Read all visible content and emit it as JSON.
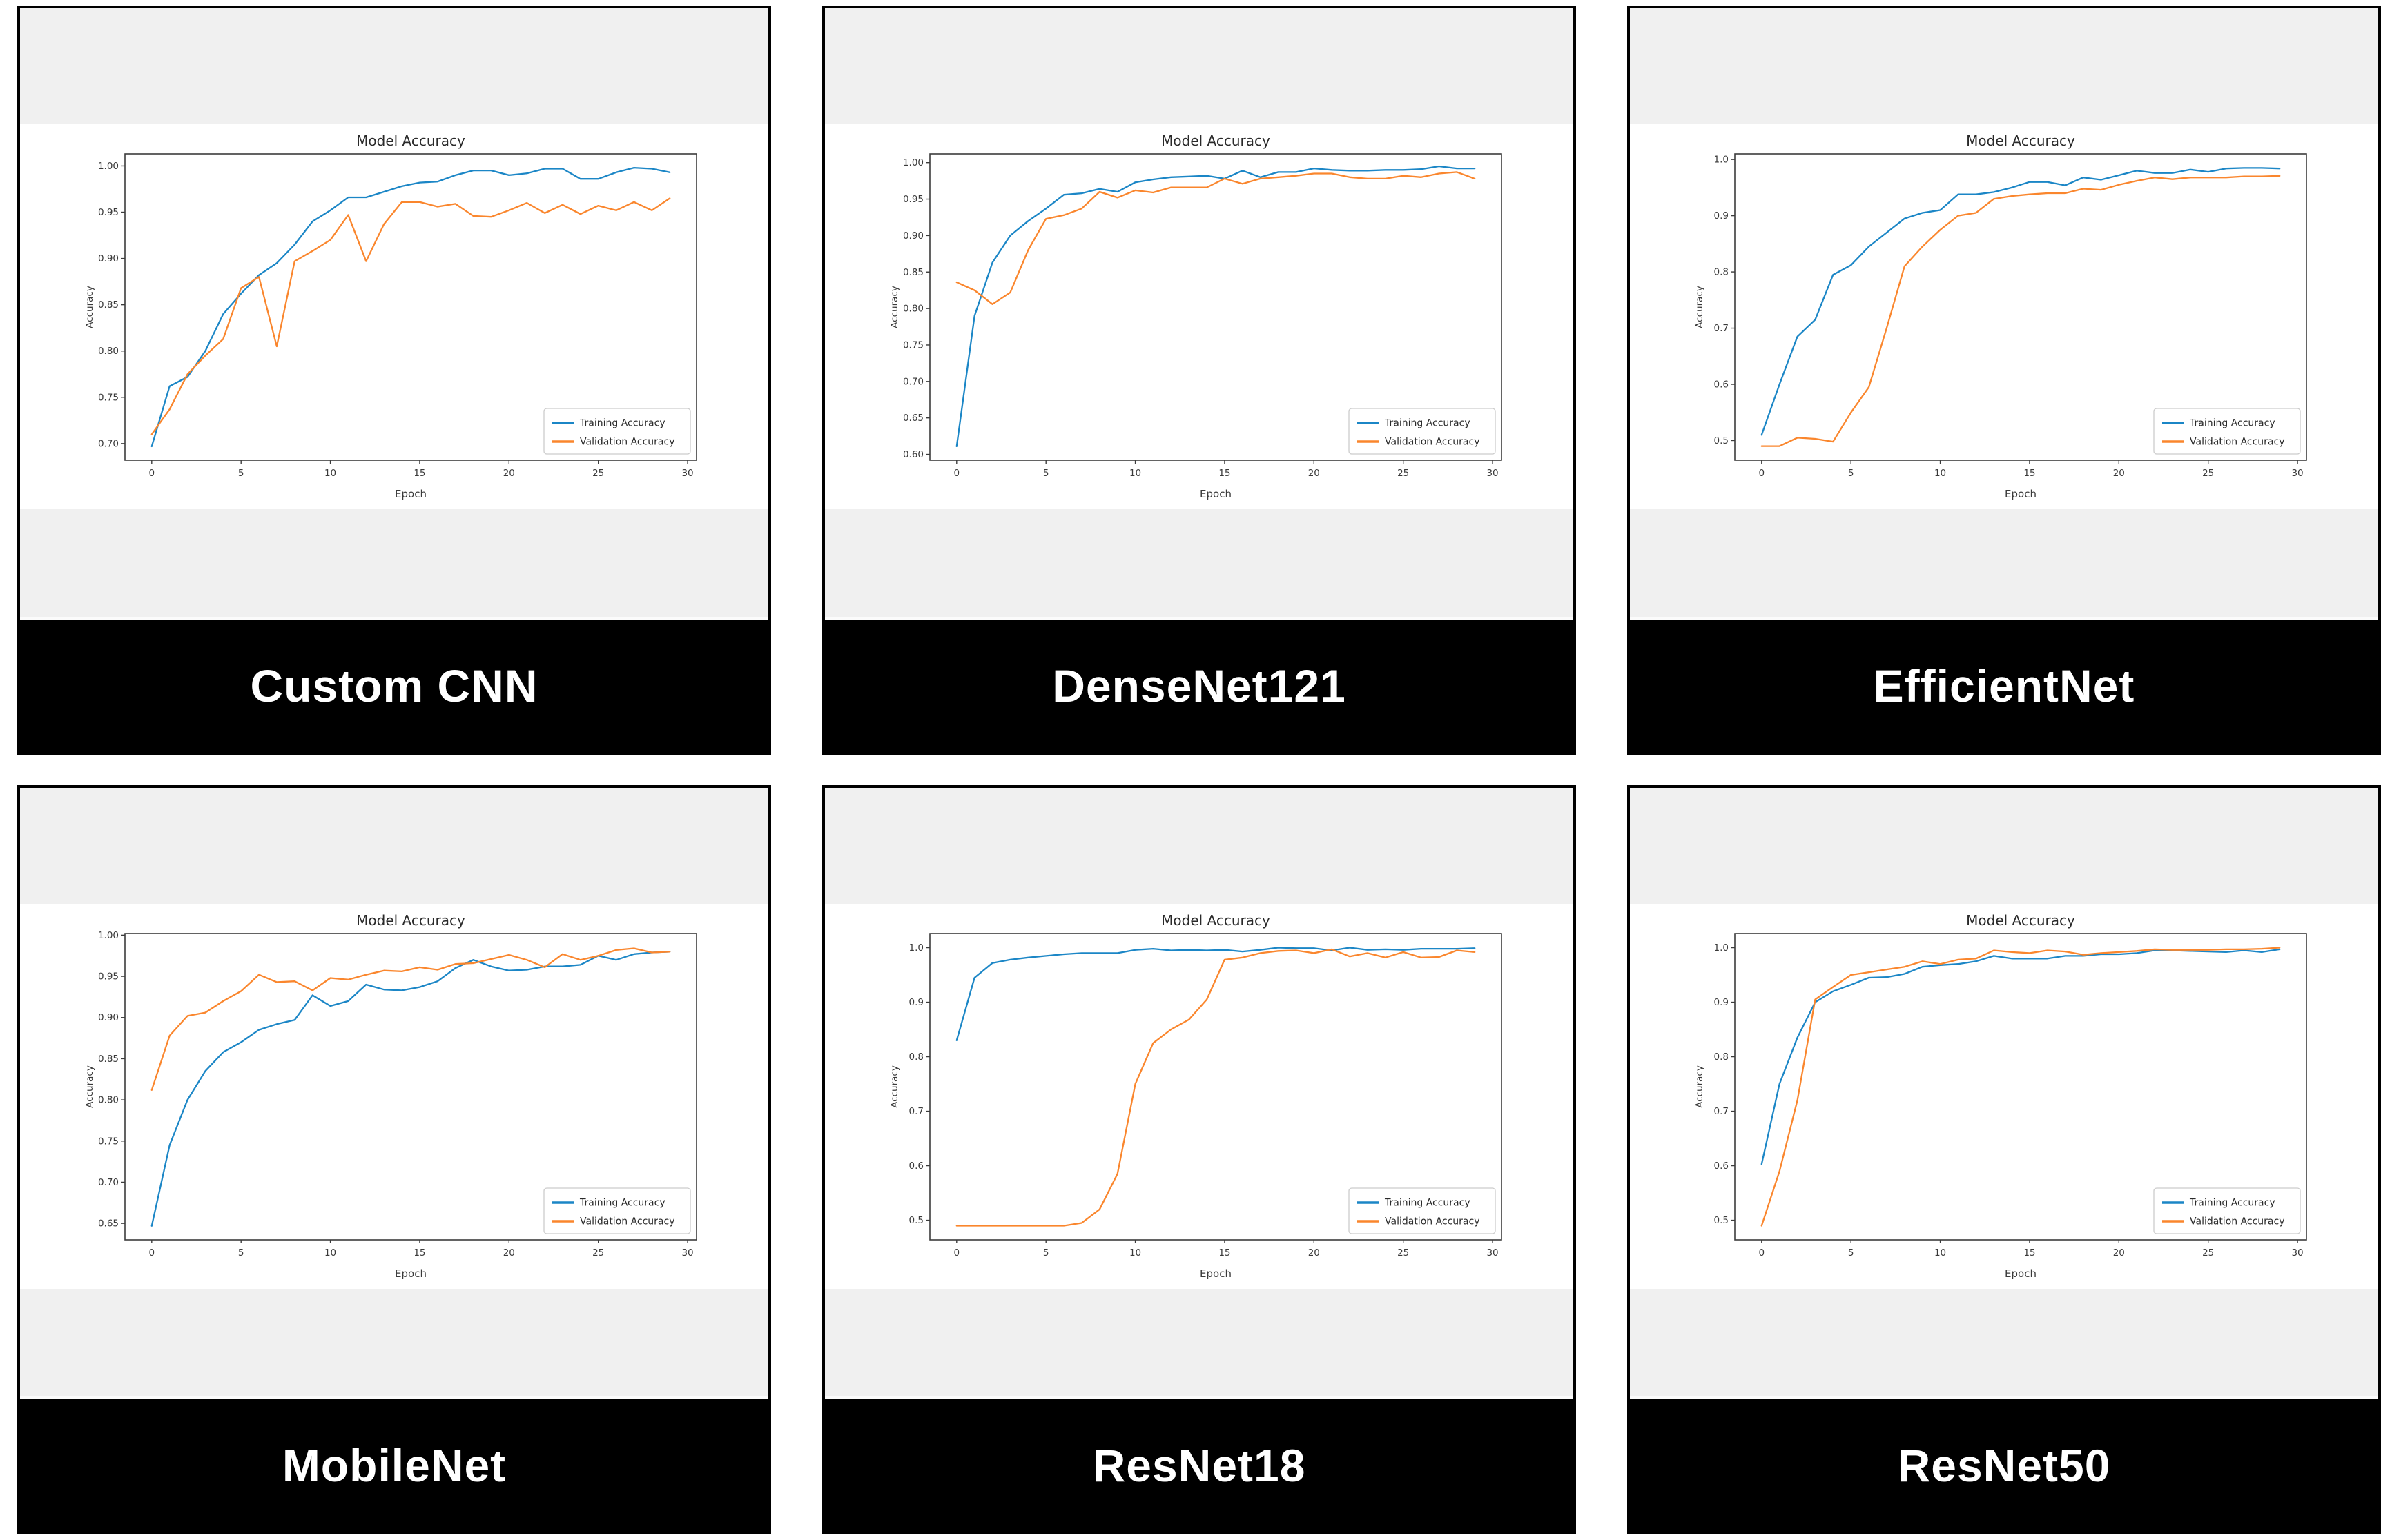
{
  "page": {
    "background": "#ffffff",
    "panel_strip_color": "#f0f0f0",
    "panel_border_color": "#000000",
    "caption_bg": "#000000",
    "caption_text_color": "#ffffff"
  },
  "colors": {
    "training": "#1b86c6",
    "validation": "#fa862d",
    "spine": "#3c3c3c",
    "tick_text": "#3a3a3a"
  },
  "chart_data": [
    {
      "type": "line",
      "caption": "Custom CNN",
      "title": "Model Accuracy",
      "xlabel": "Epoch",
      "ylabel": "Accuracy",
      "grid": false,
      "legend_position": "lower right",
      "x": [
        0,
        1,
        2,
        3,
        4,
        5,
        6,
        7,
        8,
        9,
        10,
        11,
        12,
        13,
        14,
        15,
        16,
        17,
        18,
        19,
        20,
        21,
        22,
        23,
        24,
        25,
        26,
        27,
        28,
        29
      ],
      "xlim": [
        -1.5,
        30.5
      ],
      "ylim": [
        0.682,
        1.013
      ],
      "xticks": [
        0,
        5,
        10,
        15,
        20,
        25,
        30
      ],
      "yticks": {
        "values": [
          0.7,
          0.75,
          0.8,
          0.85,
          0.9,
          0.95,
          1.0
        ],
        "labels": [
          "0.70",
          "0.75",
          "0.80",
          "0.85",
          "0.90",
          "0.95",
          "1.00"
        ]
      },
      "series": [
        {
          "name": "Training Accuracy",
          "color": "#1b86c6",
          "values": [
            0.697,
            0.762,
            0.772,
            0.8,
            0.84,
            0.862,
            0.882,
            0.895,
            0.915,
            0.94,
            0.952,
            0.966,
            0.966,
            0.972,
            0.978,
            0.982,
            0.983,
            0.99,
            0.995,
            0.995,
            0.99,
            0.992,
            0.997,
            0.997,
            0.986,
            0.986,
            0.993,
            0.998,
            0.997,
            0.993
          ]
        },
        {
          "name": "Validation Accuracy",
          "color": "#fa862d",
          "values": [
            0.71,
            0.737,
            0.775,
            0.795,
            0.813,
            0.868,
            0.88,
            0.805,
            0.897,
            0.908,
            0.92,
            0.947,
            0.897,
            0.937,
            0.961,
            0.961,
            0.956,
            0.959,
            0.946,
            0.945,
            0.952,
            0.96,
            0.949,
            0.958,
            0.948,
            0.957,
            0.952,
            0.961,
            0.952,
            0.965
          ]
        }
      ]
    },
    {
      "type": "line",
      "caption": "DenseNet121",
      "title": "Model Accuracy",
      "xlabel": "Epoch",
      "ylabel": "Accuracy",
      "grid": false,
      "legend_position": "lower right",
      "x": [
        0,
        1,
        2,
        3,
        4,
        5,
        6,
        7,
        8,
        9,
        10,
        11,
        12,
        13,
        14,
        15,
        16,
        17,
        18,
        19,
        20,
        21,
        22,
        23,
        24,
        25,
        26,
        27,
        28,
        29
      ],
      "xlim": [
        -1.5,
        30.5
      ],
      "ylim": [
        0.592,
        1.012
      ],
      "xticks": [
        0,
        5,
        10,
        15,
        20,
        25,
        30
      ],
      "yticks": {
        "values": [
          0.6,
          0.65,
          0.7,
          0.75,
          0.8,
          0.85,
          0.9,
          0.95,
          1.0
        ],
        "labels": [
          "0.60",
          "0.65",
          "0.70",
          "0.75",
          "0.80",
          "0.85",
          "0.90",
          "0.95",
          "1.00"
        ]
      },
      "series": [
        {
          "name": "Training Accuracy",
          "color": "#1b86c6",
          "values": [
            0.611,
            0.79,
            0.863,
            0.9,
            0.92,
            0.937,
            0.956,
            0.958,
            0.964,
            0.96,
            0.973,
            0.977,
            0.98,
            0.981,
            0.982,
            0.978,
            0.989,
            0.98,
            0.987,
            0.987,
            0.992,
            0.99,
            0.989,
            0.989,
            0.99,
            0.99,
            0.991,
            0.995,
            0.992,
            0.992
          ]
        },
        {
          "name": "Validation Accuracy",
          "color": "#fa862d",
          "values": [
            0.836,
            0.825,
            0.806,
            0.822,
            0.88,
            0.923,
            0.928,
            0.937,
            0.96,
            0.952,
            0.962,
            0.959,
            0.966,
            0.966,
            0.966,
            0.978,
            0.971,
            0.978,
            0.98,
            0.982,
            0.985,
            0.985,
            0.98,
            0.978,
            0.978,
            0.982,
            0.98,
            0.985,
            0.987,
            0.978
          ]
        }
      ]
    },
    {
      "type": "line",
      "caption": "EfficientNet",
      "title": "Model Accuracy",
      "xlabel": "Epoch",
      "ylabel": "Accuracy",
      "grid": false,
      "legend_position": "lower right",
      "x": [
        0,
        1,
        2,
        3,
        4,
        5,
        6,
        7,
        8,
        9,
        10,
        11,
        12,
        13,
        14,
        15,
        16,
        17,
        18,
        19,
        20,
        21,
        22,
        23,
        24,
        25,
        26,
        27,
        28,
        29
      ],
      "xlim": [
        -1.5,
        30.5
      ],
      "ylim": [
        0.465,
        1.01
      ],
      "xticks": [
        0,
        5,
        10,
        15,
        20,
        25,
        30
      ],
      "yticks": {
        "values": [
          0.5,
          0.6,
          0.7,
          0.8,
          0.9,
          1.0
        ],
        "labels": [
          "0.5",
          "0.6",
          "0.7",
          "0.8",
          "0.9",
          "1.0"
        ]
      },
      "series": [
        {
          "name": "Training Accuracy",
          "color": "#1b86c6",
          "values": [
            0.51,
            0.6,
            0.685,
            0.715,
            0.795,
            0.812,
            0.845,
            0.87,
            0.895,
            0.905,
            0.91,
            0.938,
            0.938,
            0.942,
            0.95,
            0.96,
            0.96,
            0.954,
            0.968,
            0.964,
            0.972,
            0.98,
            0.976,
            0.976,
            0.982,
            0.978,
            0.984,
            0.985,
            0.985,
            0.984
          ]
        },
        {
          "name": "Validation Accuracy",
          "color": "#fa862d",
          "values": [
            0.49,
            0.49,
            0.505,
            0.503,
            0.498,
            0.55,
            0.595,
            0.7,
            0.81,
            0.845,
            0.875,
            0.9,
            0.905,
            0.93,
            0.935,
            0.938,
            0.94,
            0.94,
            0.948,
            0.946,
            0.955,
            0.962,
            0.968,
            0.965,
            0.968,
            0.968,
            0.968,
            0.97,
            0.97,
            0.971
          ]
        }
      ]
    },
    {
      "type": "line",
      "caption": "MobileNet",
      "title": "Model Accuracy",
      "xlabel": "Epoch",
      "ylabel": "Accuracy",
      "grid": false,
      "legend_position": "lower right",
      "x": [
        0,
        1,
        2,
        3,
        4,
        5,
        6,
        7,
        8,
        9,
        10,
        11,
        12,
        13,
        14,
        15,
        16,
        17,
        18,
        19,
        20,
        21,
        22,
        23,
        24,
        25,
        26,
        27,
        28,
        29
      ],
      "xlim": [
        -1.5,
        30.5
      ],
      "ylim": [
        0.63,
        1.002
      ],
      "xticks": [
        0,
        5,
        10,
        15,
        20,
        25,
        30
      ],
      "yticks": {
        "values": [
          0.65,
          0.7,
          0.75,
          0.8,
          0.85,
          0.9,
          0.95,
          1.0
        ],
        "labels": [
          "0.65",
          "0.70",
          "0.75",
          "0.80",
          "0.85",
          "0.90",
          "0.95",
          "1.00"
        ]
      },
      "series": [
        {
          "name": "Training Accuracy",
          "color": "#1b86c6",
          "values": [
            0.647,
            0.745,
            0.8,
            0.835,
            0.858,
            0.87,
            0.885,
            0.892,
            0.897,
            0.927,
            0.914,
            0.92,
            0.94,
            0.934,
            0.933,
            0.937,
            0.944,
            0.96,
            0.97,
            0.962,
            0.957,
            0.958,
            0.962,
            0.962,
            0.964,
            0.975,
            0.97,
            0.977,
            0.979,
            0.98
          ]
        },
        {
          "name": "Validation Accuracy",
          "color": "#fa862d",
          "values": [
            0.812,
            0.878,
            0.902,
            0.906,
            0.92,
            0.932,
            0.952,
            0.943,
            0.944,
            0.933,
            0.948,
            0.946,
            0.952,
            0.957,
            0.956,
            0.961,
            0.958,
            0.965,
            0.966,
            0.971,
            0.976,
            0.97,
            0.961,
            0.977,
            0.97,
            0.975,
            0.982,
            0.984,
            0.979,
            0.98
          ]
        }
      ]
    },
    {
      "type": "line",
      "caption": "ResNet18",
      "title": "Model Accuracy",
      "xlabel": "Epoch",
      "ylabel": "Accuracy",
      "grid": false,
      "legend_position": "lower right",
      "x": [
        0,
        1,
        2,
        3,
        4,
        5,
        6,
        7,
        8,
        9,
        10,
        11,
        12,
        13,
        14,
        15,
        16,
        17,
        18,
        19,
        20,
        21,
        22,
        23,
        24,
        25,
        26,
        27,
        28,
        29
      ],
      "xlim": [
        -1.5,
        30.5
      ],
      "ylim": [
        0.464,
        1.026
      ],
      "xticks": [
        0,
        5,
        10,
        15,
        20,
        25,
        30
      ],
      "yticks": {
        "values": [
          0.5,
          0.6,
          0.7,
          0.8,
          0.9,
          1.0
        ],
        "labels": [
          "0.5",
          "0.6",
          "0.7",
          "0.8",
          "0.9",
          "1.0"
        ]
      },
      "series": [
        {
          "name": "Training Accuracy",
          "color": "#1b86c6",
          "values": [
            0.83,
            0.945,
            0.972,
            0.978,
            0.982,
            0.985,
            0.988,
            0.99,
            0.99,
            0.99,
            0.996,
            0.998,
            0.995,
            0.996,
            0.995,
            0.996,
            0.993,
            0.996,
            1.0,
            0.999,
            0.999,
            0.995,
            1.0,
            0.996,
            0.997,
            0.996,
            0.998,
            0.998,
            0.998,
            0.999
          ]
        },
        {
          "name": "Validation Accuracy",
          "color": "#fa862d",
          "values": [
            0.49,
            0.49,
            0.49,
            0.49,
            0.49,
            0.49,
            0.49,
            0.495,
            0.52,
            0.585,
            0.75,
            0.825,
            0.85,
            0.868,
            0.905,
            0.978,
            0.982,
            0.99,
            0.994,
            0.995,
            0.99,
            0.997,
            0.984,
            0.99,
            0.982,
            0.992,
            0.982,
            0.983,
            0.995,
            0.992
          ]
        }
      ]
    },
    {
      "type": "line",
      "caption": "ResNet50",
      "title": "Model Accuracy",
      "xlabel": "Epoch",
      "ylabel": "Accuracy",
      "grid": false,
      "legend_position": "lower right",
      "x": [
        0,
        1,
        2,
        3,
        4,
        5,
        6,
        7,
        8,
        9,
        10,
        11,
        12,
        13,
        14,
        15,
        16,
        17,
        18,
        19,
        20,
        21,
        22,
        23,
        24,
        25,
        26,
        27,
        28,
        29
      ],
      "xlim": [
        -1.5,
        30.5
      ],
      "ylim": [
        0.464,
        1.026
      ],
      "xticks": [
        0,
        5,
        10,
        15,
        20,
        25,
        30
      ],
      "yticks": {
        "values": [
          0.5,
          0.6,
          0.7,
          0.8,
          0.9,
          1.0
        ],
        "labels": [
          "0.5",
          "0.6",
          "0.7",
          "0.8",
          "0.9",
          "1.0"
        ]
      },
      "series": [
        {
          "name": "Training Accuracy",
          "color": "#1b86c6",
          "values": [
            0.603,
            0.75,
            0.835,
            0.9,
            0.92,
            0.932,
            0.945,
            0.946,
            0.952,
            0.965,
            0.968,
            0.97,
            0.975,
            0.985,
            0.98,
            0.98,
            0.98,
            0.985,
            0.985,
            0.988,
            0.988,
            0.99,
            0.995,
            0.995,
            0.994,
            0.993,
            0.992,
            0.995,
            0.992,
            0.997
          ]
        },
        {
          "name": "Validation Accuracy",
          "color": "#fa862d",
          "values": [
            0.49,
            0.59,
            0.72,
            0.905,
            0.928,
            0.95,
            0.955,
            0.96,
            0.965,
            0.975,
            0.97,
            0.978,
            0.98,
            0.995,
            0.992,
            0.99,
            0.995,
            0.993,
            0.987,
            0.99,
            0.992,
            0.994,
            0.997,
            0.996,
            0.996,
            0.996,
            0.997,
            0.997,
            0.998,
            1.0
          ]
        }
      ]
    }
  ]
}
